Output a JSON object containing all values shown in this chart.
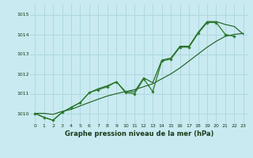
{
  "xlabel": "Graphe pression niveau de la mer (hPa)",
  "background_color": "#c8eaf0",
  "grid_color": "#b0d8e0",
  "line_dark": "#1a5c1a",
  "line_mid": "#2a7a2a",
  "ylim": [
    1009.5,
    1015.5
  ],
  "yticks": [
    1010,
    1011,
    1012,
    1013,
    1014,
    1015
  ],
  "xlim": [
    -0.5,
    23.5
  ],
  "xticks": [
    0,
    1,
    2,
    3,
    4,
    5,
    6,
    7,
    8,
    9,
    10,
    11,
    12,
    13,
    14,
    15,
    16,
    17,
    18,
    19,
    20,
    21,
    22,
    23
  ],
  "hours": [
    0,
    1,
    2,
    3,
    4,
    5,
    6,
    7,
    8,
    9,
    10,
    11,
    12,
    13,
    14,
    15,
    16,
    17,
    18,
    19,
    20,
    21,
    22,
    23
  ],
  "series_jagged": [
    1010.0,
    1009.8,
    1009.65,
    1010.05,
    1010.3,
    1010.55,
    1011.05,
    1011.2,
    1011.35,
    1011.6,
    1011.05,
    1011.0,
    1011.75,
    1011.1,
    1012.65,
    1012.75,
    1013.35,
    1013.35,
    1014.05,
    1014.6,
    1014.6,
    1014.0,
    1013.9,
    null
  ],
  "series_upper": [
    1010.0,
    1009.8,
    1009.65,
    1010.05,
    1010.3,
    1010.55,
    1011.05,
    1011.25,
    1011.4,
    1011.6,
    1011.1,
    1011.1,
    1011.8,
    1011.55,
    1012.7,
    1012.8,
    1013.4,
    1013.4,
    1014.1,
    1014.65,
    1014.65,
    1014.5,
    1014.4,
    1014.0
  ],
  "series_smooth": [
    1010.0,
    1010.0,
    1009.95,
    1010.1,
    1010.2,
    1010.38,
    1010.55,
    1010.72,
    1010.88,
    1011.0,
    1011.1,
    1011.2,
    1011.35,
    1011.5,
    1011.75,
    1012.0,
    1012.3,
    1012.65,
    1013.0,
    1013.35,
    1013.65,
    1013.9,
    1014.0,
    1014.05
  ]
}
